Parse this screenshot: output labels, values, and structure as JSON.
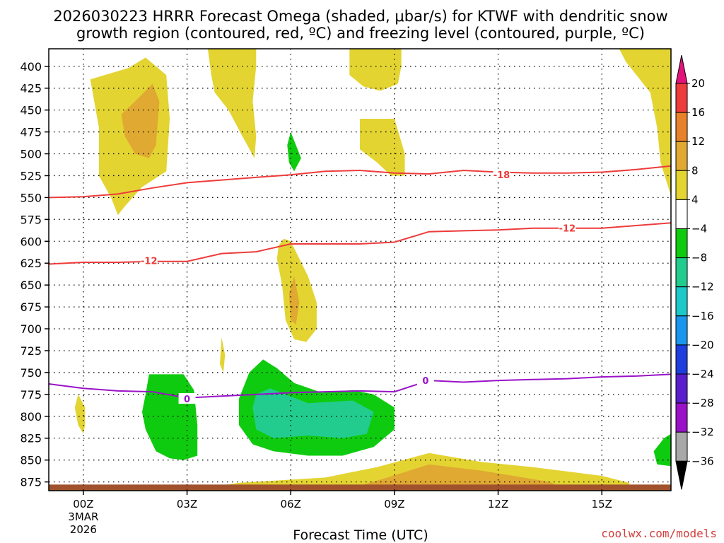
{
  "chart_data": {
    "type": "heatmap",
    "title_line1": "2026030223 HRRR Forecast Omega (shaded, μbar/s) for KTWF with dendritic snow",
    "title_line2": "growth region (contoured, red, ºC) and freezing level (contoured, purple, ºC)",
    "xlabel": "Forecast Time (UTC)",
    "credit": "coolwx.com/models",
    "x_range_hours": [
      -1,
      17
    ],
    "y_range_hpa": [
      380,
      885
    ],
    "x_ticks": [
      {
        "hour": 0,
        "label": "00Z",
        "sub1": "3MAR",
        "sub2": "2026"
      },
      {
        "hour": 3,
        "label": "03Z",
        "sub1": "",
        "sub2": ""
      },
      {
        "hour": 6,
        "label": "06Z",
        "sub1": "",
        "sub2": ""
      },
      {
        "hour": 9,
        "label": "09Z",
        "sub1": "",
        "sub2": ""
      },
      {
        "hour": 12,
        "label": "12Z",
        "sub1": "",
        "sub2": ""
      },
      {
        "hour": 15,
        "label": "15Z",
        "sub1": "",
        "sub2": ""
      }
    ],
    "y_ticks": [
      400,
      425,
      450,
      475,
      500,
      525,
      550,
      575,
      600,
      625,
      650,
      675,
      700,
      725,
      750,
      775,
      800,
      825,
      850,
      875
    ],
    "colorbar": {
      "labels": [
        "20",
        "16",
        "12",
        "8",
        "4",
        "−4",
        "−8",
        "−12",
        "−16",
        "−20",
        "−24",
        "−28",
        "−32",
        "−36"
      ],
      "colors": [
        "#ee3b3b",
        "#e8822a",
        "#dfa932",
        "#e3d432",
        "#ffffff",
        "#0fcb0f",
        "#21cc8e",
        "#1cc8c8",
        "#1a96ee",
        "#1e3ee0",
        "#5a1ecc",
        "#9a12c8",
        "#a8a8a8"
      ],
      "top_arrow_color": "#e4137c",
      "bottom_arrow_color": "#000000"
    },
    "colors": {
      "omega_pos_4_8": "#e3d432",
      "omega_pos_8_12": "#dfa932",
      "omega_neg_4_8": "#0fcb0f",
      "omega_neg_8_12": "#21cc8e",
      "terrain": "#a0522d",
      "dgz": "#ee3b3b",
      "freezing": "#9a12c8"
    },
    "omega_regions": [
      {
        "name": "upper-left-positive",
        "value": 4,
        "pts": [
          [
            0.2,
            415
          ],
          [
            1.3,
            402
          ],
          [
            1.8,
            390
          ],
          [
            2.4,
            410
          ],
          [
            2.5,
            460
          ],
          [
            2.4,
            520
          ],
          [
            1.7,
            538
          ],
          [
            1.2,
            560
          ],
          [
            1,
            570
          ],
          [
            0.8,
            550
          ],
          [
            0.45,
            525
          ],
          [
            0.45,
            470
          ]
        ]
      },
      {
        "name": "upper-left-core",
        "value": 8,
        "pts": [
          [
            1.1,
            455
          ],
          [
            1.5,
            440
          ],
          [
            2.0,
            420
          ],
          [
            2.2,
            440
          ],
          [
            2.1,
            490
          ],
          [
            1.9,
            505
          ],
          [
            1.5,
            500
          ],
          [
            1.2,
            480
          ]
        ]
      },
      {
        "name": "upper-column-positive",
        "value": 4,
        "pts": [
          [
            3.6,
            380
          ],
          [
            5.0,
            380
          ],
          [
            5.0,
            400
          ],
          [
            4.9,
            440
          ],
          [
            5.0,
            480
          ],
          [
            4.95,
            505
          ],
          [
            4.6,
            480
          ],
          [
            4.2,
            450
          ],
          [
            3.8,
            430
          ],
          [
            3.7,
            410
          ]
        ]
      },
      {
        "name": "upper-mid-positive",
        "value": 4,
        "pts": [
          [
            7.7,
            380
          ],
          [
            9.2,
            380
          ],
          [
            9.2,
            400
          ],
          [
            9.1,
            420
          ],
          [
            8.6,
            428
          ],
          [
            8.1,
            423
          ],
          [
            7.7,
            410
          ]
        ]
      },
      {
        "name": "mid-column-positive",
        "value": 4,
        "pts": [
          [
            8.0,
            460
          ],
          [
            9.0,
            460
          ],
          [
            9.3,
            500
          ],
          [
            9.3,
            525
          ],
          [
            8.9,
            525
          ],
          [
            8.5,
            510
          ],
          [
            8.0,
            495
          ]
        ]
      },
      {
        "name": "mid-green-sliver",
        "value": -4,
        "pts": [
          [
            6.0,
            475
          ],
          [
            6.3,
            505
          ],
          [
            6.1,
            520
          ],
          [
            5.95,
            510
          ],
          [
            5.9,
            490
          ]
        ]
      },
      {
        "name": "mid-positive-lobe",
        "value": 4,
        "pts": [
          [
            5.8,
            597
          ],
          [
            6.0,
            600
          ],
          [
            6.5,
            640
          ],
          [
            6.75,
            670
          ],
          [
            6.75,
            700
          ],
          [
            6.45,
            715
          ],
          [
            6.1,
            712
          ],
          [
            5.85,
            690
          ],
          [
            5.75,
            650
          ],
          [
            5.6,
            620
          ],
          [
            5.65,
            605
          ]
        ]
      },
      {
        "name": "mid-positive-core",
        "value": 8,
        "pts": [
          [
            6.1,
            640
          ],
          [
            6.25,
            670
          ],
          [
            6.15,
            695
          ],
          [
            6.0,
            690
          ],
          [
            5.95,
            660
          ]
        ]
      },
      {
        "name": "small-positive-sliver",
        "value": 4,
        "pts": [
          [
            4.0,
            710
          ],
          [
            4.1,
            730
          ],
          [
            4.05,
            750
          ],
          [
            3.95,
            740
          ]
        ]
      },
      {
        "name": "left-small-positive",
        "value": 4,
        "pts": [
          [
            -0.15,
            775
          ],
          [
            0.05,
            790
          ],
          [
            0.05,
            810
          ],
          [
            0.0,
            820
          ],
          [
            -0.15,
            810
          ],
          [
            -0.25,
            790
          ]
        ]
      },
      {
        "name": "left-green-blob",
        "value": -4,
        "pts": [
          [
            1.9,
            752
          ],
          [
            2.9,
            752
          ],
          [
            3.2,
            770
          ],
          [
            3.3,
            810
          ],
          [
            3.3,
            845
          ],
          [
            2.9,
            850
          ],
          [
            2.5,
            848
          ],
          [
            2.1,
            840
          ],
          [
            1.8,
            815
          ],
          [
            1.7,
            795
          ],
          [
            1.8,
            775
          ]
        ]
      },
      {
        "name": "central-green-blob",
        "value": -4,
        "pts": [
          [
            4.8,
            750
          ],
          [
            5.2,
            735
          ],
          [
            5.6,
            745
          ],
          [
            6.1,
            762
          ],
          [
            6.9,
            773
          ],
          [
            7.8,
            770
          ],
          [
            8.4,
            775
          ],
          [
            9.0,
            790
          ],
          [
            9.0,
            815
          ],
          [
            8.4,
            835
          ],
          [
            7.5,
            845
          ],
          [
            6.5,
            845
          ],
          [
            5.5,
            840
          ],
          [
            4.9,
            832
          ],
          [
            4.5,
            810
          ],
          [
            4.5,
            780
          ]
        ]
      },
      {
        "name": "central-teal-core",
        "value": -8,
        "pts": [
          [
            5.0,
            775
          ],
          [
            5.4,
            768
          ],
          [
            6.5,
            785
          ],
          [
            7.8,
            782
          ],
          [
            8.4,
            795
          ],
          [
            8.2,
            820
          ],
          [
            7.5,
            825
          ],
          [
            6.5,
            822
          ],
          [
            5.5,
            825
          ],
          [
            5.0,
            815
          ],
          [
            4.9,
            790
          ]
        ]
      },
      {
        "name": "right-top-positive",
        "value": 4,
        "pts": [
          [
            15.5,
            380
          ],
          [
            17,
            380
          ],
          [
            17,
            548
          ],
          [
            16.7,
            510
          ],
          [
            16.6,
            470
          ],
          [
            16.4,
            430
          ],
          [
            16.0,
            410
          ],
          [
            15.7,
            395
          ]
        ]
      },
      {
        "name": "right-bottom-green",
        "value": -4,
        "pts": [
          [
            17,
            820
          ],
          [
            17,
            857
          ],
          [
            16.6,
            855
          ],
          [
            16.5,
            840
          ],
          [
            16.8,
            825
          ]
        ]
      },
      {
        "name": "lower-positive-band",
        "value": 4,
        "pts": [
          [
            3.0,
            885
          ],
          [
            4.5,
            876
          ],
          [
            7.0,
            870
          ],
          [
            8.5,
            858
          ],
          [
            10.0,
            842
          ],
          [
            11.5,
            852
          ],
          [
            13.0,
            858
          ],
          [
            15.0,
            868
          ],
          [
            15.8,
            876
          ],
          [
            15.8,
            885
          ]
        ]
      },
      {
        "name": "lower-positive-core",
        "value": 8,
        "pts": [
          [
            7.5,
            885
          ],
          [
            8.8,
            870
          ],
          [
            10.0,
            855
          ],
          [
            11.5,
            862
          ],
          [
            13.5,
            875
          ],
          [
            14.0,
            885
          ]
        ]
      }
    ],
    "terrain_band": {
      "top_hpa": 878,
      "bottom_hpa": 885
    },
    "dgz_upper": {
      "label": "-18",
      "label_at": [
        12.1,
        524
      ],
      "x": [
        -1,
        0,
        1,
        2,
        3,
        4,
        5,
        6,
        7,
        8,
        9,
        10,
        11,
        12,
        13,
        14,
        15,
        16,
        17
      ],
      "y": [
        550,
        549,
        546,
        539,
        533,
        530,
        527,
        524,
        520,
        519,
        522,
        523,
        519,
        521,
        522,
        522,
        521,
        518,
        514
      ]
    },
    "dgz_lower": {
      "label": "-12",
      "label_at": [
        1.9,
        622
      ],
      "x": [
        -1,
        0,
        1,
        2,
        3,
        4,
        5,
        6,
        7,
        8,
        9,
        10,
        11,
        12,
        13,
        14,
        15,
        16,
        17
      ],
      "y": [
        626,
        624,
        624,
        623,
        623,
        614,
        612,
        603,
        603,
        603,
        601,
        589,
        588,
        587,
        585,
        585,
        585,
        582,
        579
      ]
    },
    "dgz_lower_label2": {
      "label": "-12",
      "label_at": [
        14.0,
        585
      ]
    },
    "freezing_level": {
      "label": "0",
      "label_at": [
        3.0,
        780
      ],
      "label2_at": [
        9.9,
        759
      ],
      "x": [
        -1,
        0,
        1,
        2,
        3,
        4,
        5,
        6,
        7,
        8,
        9,
        10,
        11,
        12,
        13,
        14,
        15,
        16,
        17
      ],
      "y": [
        763,
        768,
        771,
        772,
        779,
        777,
        775,
        773,
        772,
        771,
        772,
        759,
        761,
        759,
        758,
        757,
        755,
        754,
        752
      ]
    }
  }
}
